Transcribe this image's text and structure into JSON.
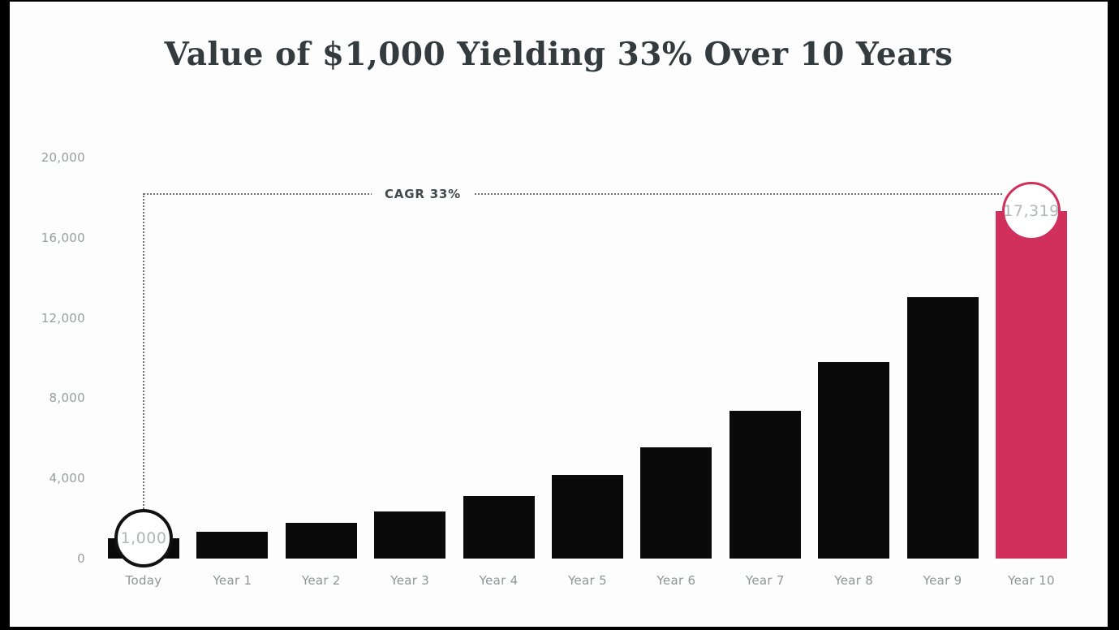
{
  "chart_data": {
    "type": "bar",
    "title": "Value of $1,000 Yielding 33% Over 10 Years",
    "categories": [
      "Today",
      "Year 1",
      "Year 2",
      "Year 3",
      "Year 4",
      "Year 5",
      "Year 6",
      "Year 7",
      "Year 8",
      "Year 9",
      "Year 10"
    ],
    "values": [
      1000,
      1330,
      1769,
      2353,
      3129,
      4162,
      5535,
      7361,
      9790,
      13022,
      17319
    ],
    "xlabel": "",
    "ylabel": "",
    "ylim": [
      0,
      20000
    ],
    "yticks": [
      0,
      4000,
      8000,
      12000,
      16000,
      20000
    ],
    "ytick_labels": [
      "0",
      "4,000",
      "8,000",
      "12,000",
      "16,000",
      "20,000"
    ],
    "grid": false,
    "legend": false,
    "highlight_index": 10,
    "colors": {
      "bar": "#0a0a0a",
      "highlight": "#d12f5c",
      "dotted_line": "#6e6e6e",
      "start_circle_border": "#111111",
      "end_circle_border": "#d12f5c"
    },
    "annotations": {
      "cagr_label": "CAGR 33%",
      "start_label": "1,000",
      "end_label": "17,319"
    }
  }
}
